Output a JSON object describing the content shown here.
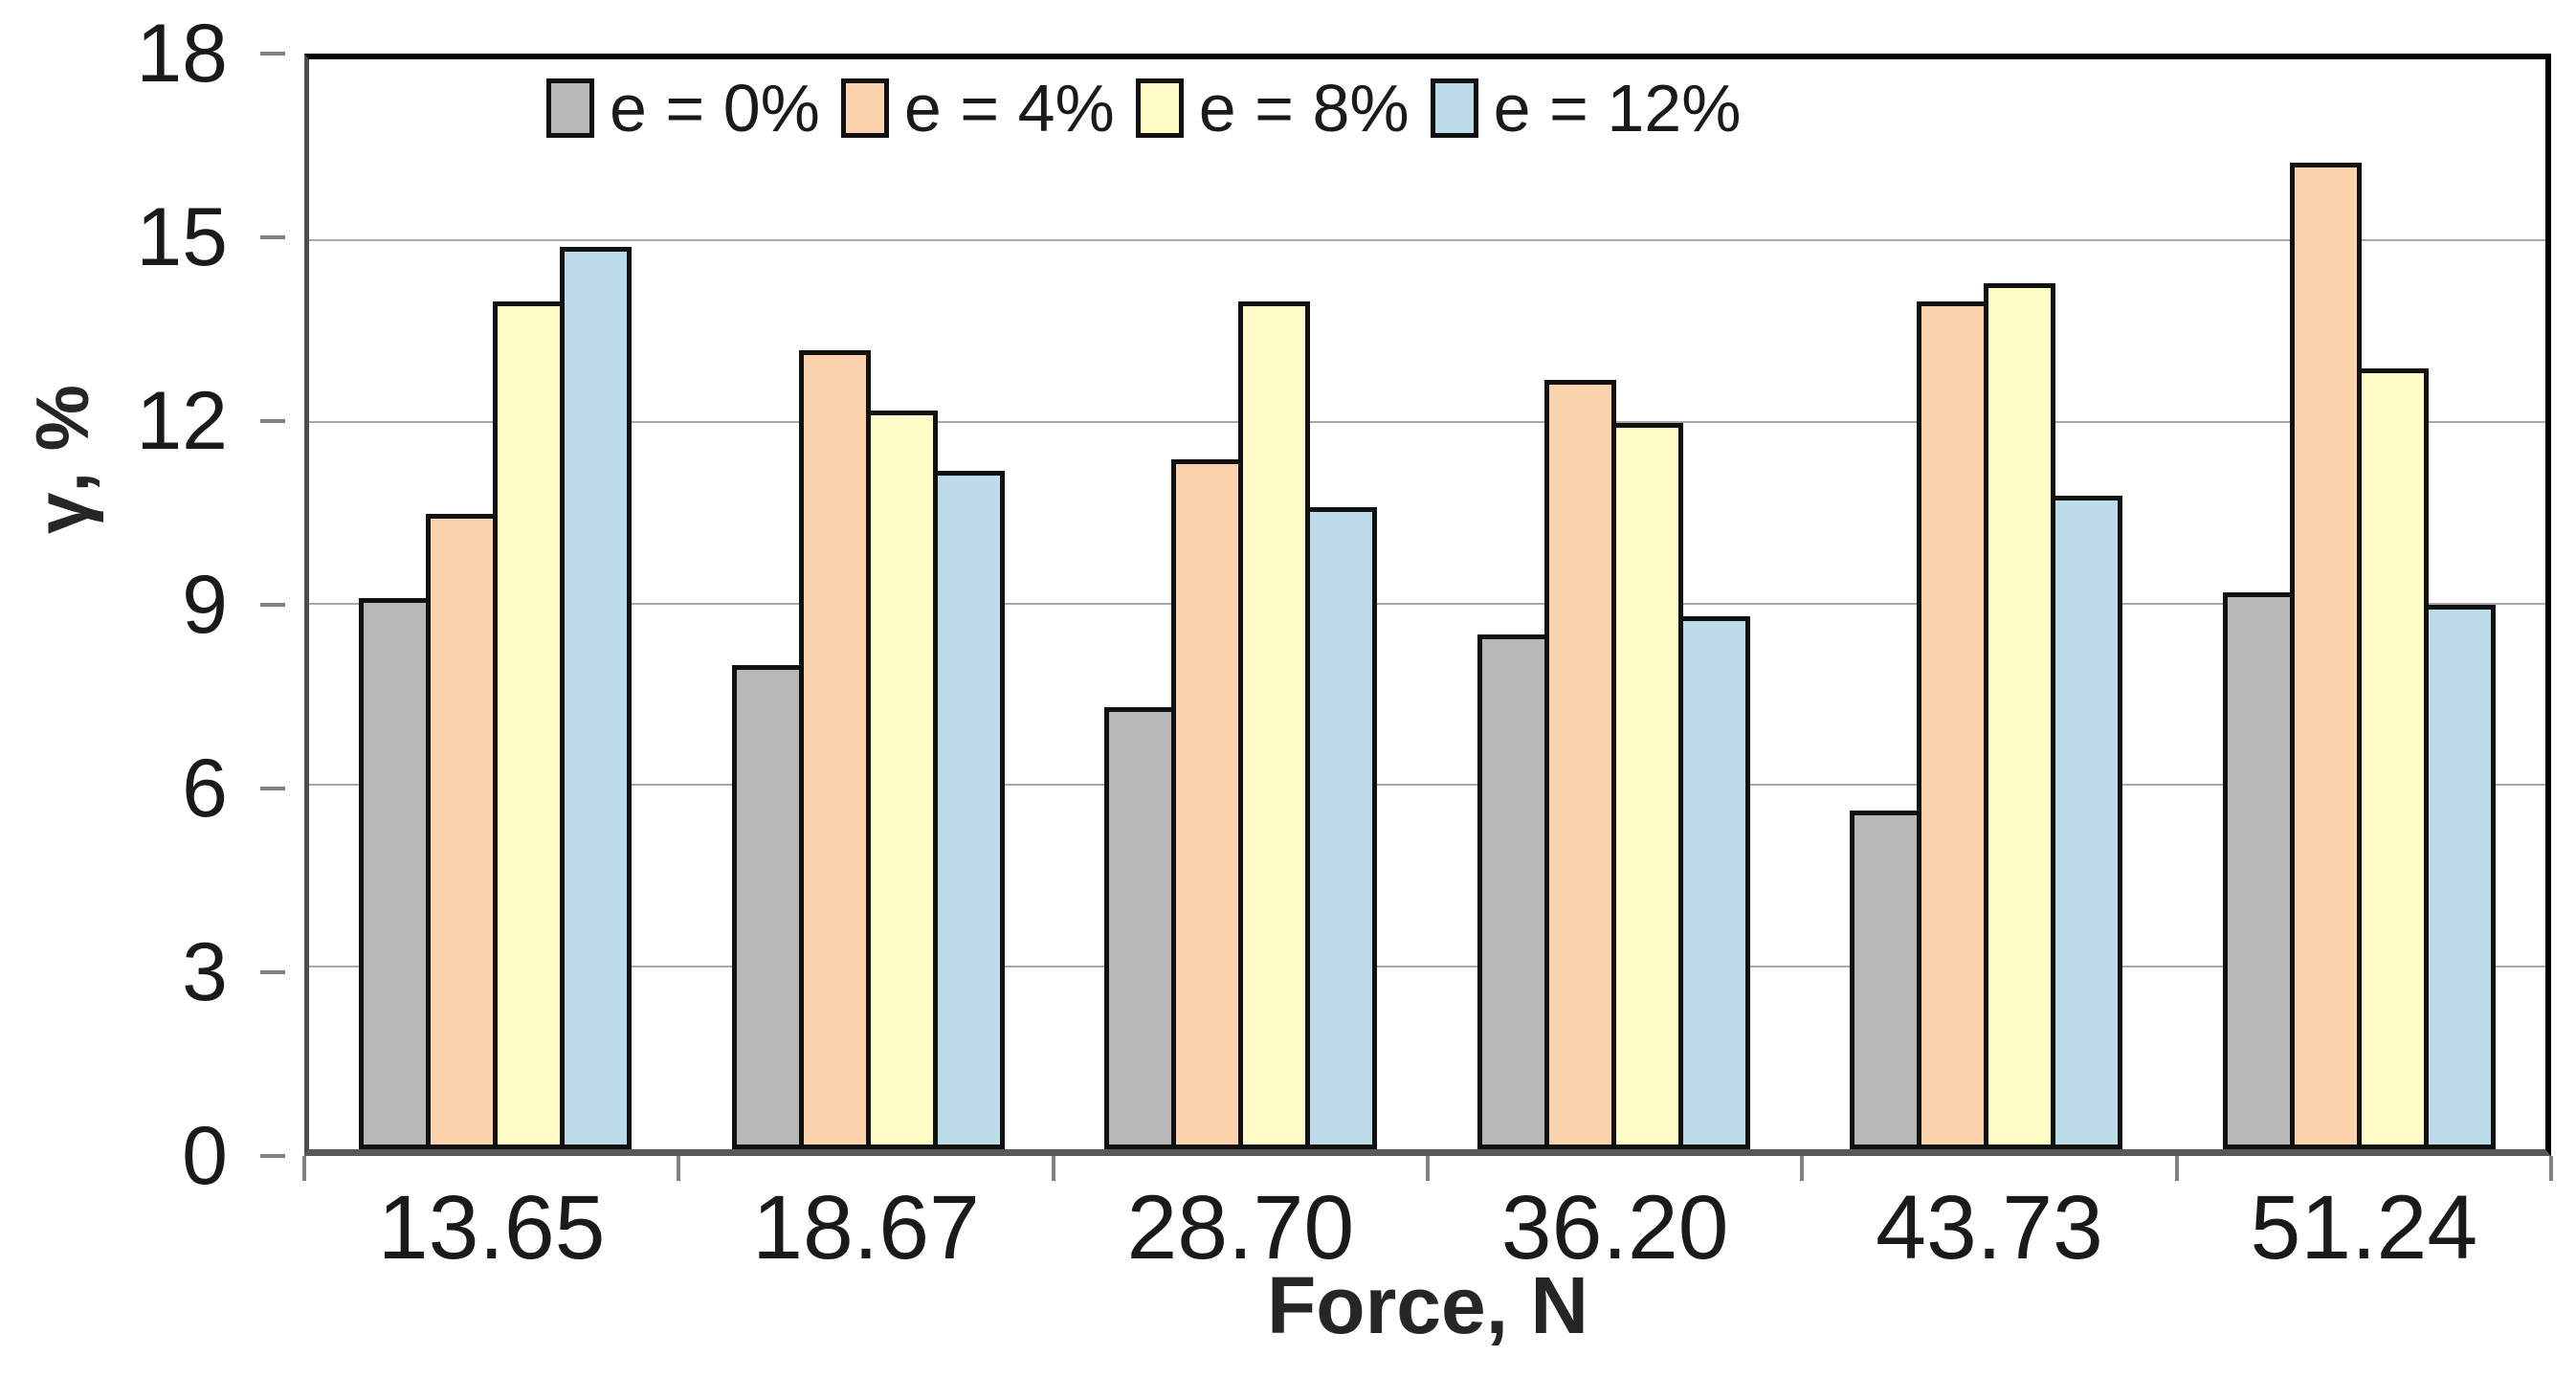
{
  "chart_data": {
    "type": "bar",
    "title": "",
    "categories": [
      "13.65",
      "18.67",
      "28.70",
      "36.20",
      "43.73",
      "51.24"
    ],
    "series": [
      {
        "name": "e = 0%",
        "color": "#b8b8b8",
        "values": [
          9.1,
          8.0,
          7.3,
          8.5,
          5.6,
          9.2
        ]
      },
      {
        "name": "e = 4%",
        "color": "#fbd2ab",
        "values": [
          10.5,
          13.2,
          11.4,
          12.7,
          14.0,
          16.3
        ]
      },
      {
        "name": "e = 8%",
        "color": "#fffbc5",
        "values": [
          14.0,
          12.2,
          14.0,
          12.0,
          14.3,
          12.9
        ]
      },
      {
        "name": "e = 12%",
        "color": "#bcdcea",
        "values": [
          14.9,
          11.2,
          10.6,
          8.8,
          10.8,
          9.0
        ]
      }
    ],
    "xlabel": "Force, N",
    "ylabel": "γ, %",
    "ylim": [
      0,
      18
    ],
    "yticks": [
      0,
      3,
      6,
      9,
      12,
      15,
      18
    ],
    "grid": true,
    "legend_position": "top-inside-horizontal",
    "bar_border_color": "#111111",
    "gridline_color": "#a8a8a8",
    "axis_tick_color": "#808080",
    "text_color": "#1a1a1a"
  }
}
